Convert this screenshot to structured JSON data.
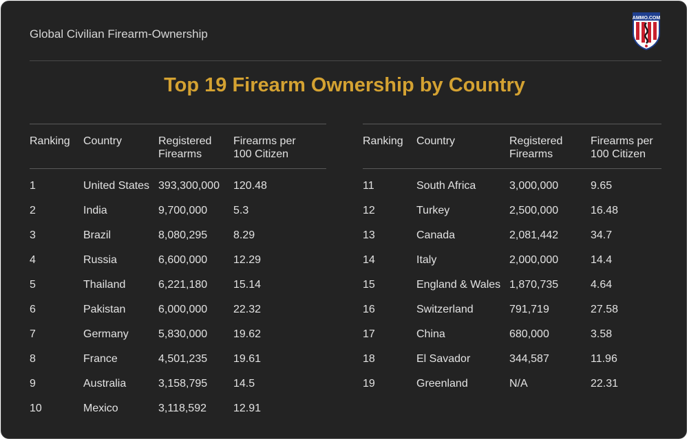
{
  "header": {
    "title": "Global Civilian Firearm-Ownership",
    "logo_text": "AMMO.COM"
  },
  "main_title": "Top 19 Firearm Ownership by Country",
  "columns": {
    "ranking": "Ranking",
    "country": "Country",
    "registered_1": "Registered",
    "registered_2": "Firearms",
    "per100_1": "Firearms per",
    "per100_2": "100 Citizen"
  },
  "left_rows": [
    {
      "rank": "1",
      "country": "United States",
      "registered": "393,300,000",
      "per100": "120.48"
    },
    {
      "rank": "2",
      "country": "India",
      "registered": "9,700,000",
      "per100": "5.3"
    },
    {
      "rank": "3",
      "country": "Brazil",
      "registered": "8,080,295",
      "per100": "8.29"
    },
    {
      "rank": "4",
      "country": "Russia",
      "registered": "6,600,000",
      "per100": "12.29"
    },
    {
      "rank": "5",
      "country": "Thailand",
      "registered": "6,221,180",
      "per100": "15.14"
    },
    {
      "rank": "6",
      "country": "Pakistan",
      "registered": "6,000,000",
      "per100": "22.32"
    },
    {
      "rank": "7",
      "country": "Germany",
      "registered": "5,830,000",
      "per100": "19.62"
    },
    {
      "rank": "8",
      "country": "France",
      "registered": "4,501,235",
      "per100": "19.61"
    },
    {
      "rank": "9",
      "country": "Australia",
      "registered": "3,158,795",
      "per100": "14.5"
    },
    {
      "rank": "10",
      "country": "Mexico",
      "registered": "3,118,592",
      "per100": "12.91"
    }
  ],
  "right_rows": [
    {
      "rank": "11",
      "country": "South Africa",
      "registered": "3,000,000",
      "per100": "9.65"
    },
    {
      "rank": "12",
      "country": "Turkey",
      "registered": "2,500,000",
      "per100": "16.48"
    },
    {
      "rank": "13",
      "country": "Canada",
      "registered": "2,081,442",
      "per100": "34.7"
    },
    {
      "rank": "14",
      "country": "Italy",
      "registered": "2,000,000",
      "per100": "14.4"
    },
    {
      "rank": "15",
      "country": "England & Wales",
      "registered": "1,870,735",
      "per100": "4.64"
    },
    {
      "rank": "16",
      "country": "Switzerland",
      "registered": "791,719",
      "per100": "27.58"
    },
    {
      "rank": "17",
      "country": "China",
      "registered": "680,000",
      "per100": "3.58"
    },
    {
      "rank": "18",
      "country": "El Savador",
      "registered": "344,587",
      "per100": "11.96"
    },
    {
      "rank": "19",
      "country": "Greenland",
      "registered": "N/A",
      "per100": "22.31"
    }
  ],
  "colors": {
    "background": "#232323",
    "title": "#d4a232",
    "text": "#e2e2e2",
    "logo_blue": "#1f3f8f",
    "logo_red": "#c8202e"
  }
}
